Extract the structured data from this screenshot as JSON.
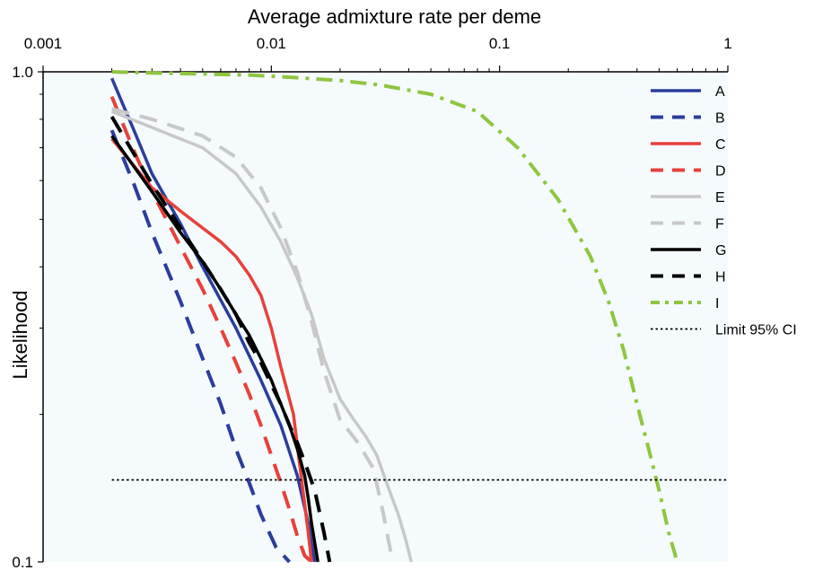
{
  "chart_data": {
    "type": "line",
    "xlabel": "Average admixture rate per deme",
    "ylabel": "Likelihood",
    "x_scale": "log",
    "y_scale": "log",
    "xlim": [
      0.001,
      1
    ],
    "ylim": [
      0.1,
      1.0
    ],
    "x_ticks": [
      {
        "value": 0.001,
        "label": "0.001"
      },
      {
        "value": 0.01,
        "label": "0.01"
      },
      {
        "value": 0.1,
        "label": "0.1"
      },
      {
        "value": 1,
        "label": "1"
      }
    ],
    "y_ticks": [
      {
        "value": 1.0,
        "label": "1.0"
      },
      {
        "value": 0.1,
        "label": "0.1"
      }
    ],
    "x_axis_position": "top",
    "grid": false,
    "legend_position": "top-right",
    "background_color": "#f5fbfd",
    "series": [
      {
        "name": "A",
        "color": "#2b3d9c",
        "dash": "solid",
        "x": [
          0.002,
          0.0025,
          0.003,
          0.004,
          0.005,
          0.007,
          0.009,
          0.011,
          0.013,
          0.0145,
          0.0155
        ],
        "y": [
          0.97,
          0.76,
          0.62,
          0.49,
          0.4,
          0.3,
          0.235,
          0.19,
          0.15,
          0.12,
          0.1
        ]
      },
      {
        "name": "B",
        "color": "#2b3d9c",
        "dash": "dash",
        "x": [
          0.002,
          0.0025,
          0.003,
          0.004,
          0.005,
          0.006,
          0.007,
          0.008,
          0.009,
          0.0105,
          0.012
        ],
        "y": [
          0.76,
          0.59,
          0.47,
          0.34,
          0.26,
          0.21,
          0.17,
          0.145,
          0.125,
          0.107,
          0.1
        ]
      },
      {
        "name": "C",
        "color": "#e8403a",
        "dash": "solid",
        "x": [
          0.002,
          0.003,
          0.004,
          0.005,
          0.006,
          0.007,
          0.008,
          0.009,
          0.01,
          0.011,
          0.0125,
          0.0135,
          0.0145,
          0.015
        ],
        "y": [
          0.73,
          0.58,
          0.52,
          0.48,
          0.45,
          0.42,
          0.385,
          0.35,
          0.3,
          0.25,
          0.2,
          0.15,
          0.115,
          0.1
        ]
      },
      {
        "name": "D",
        "color": "#e8403a",
        "dash": "dash",
        "x": [
          0.002,
          0.0025,
          0.003,
          0.004,
          0.005,
          0.006,
          0.007,
          0.008,
          0.009,
          0.01,
          0.011,
          0.012,
          0.013,
          0.014,
          0.015
        ],
        "y": [
          0.89,
          0.69,
          0.57,
          0.44,
          0.36,
          0.3,
          0.255,
          0.22,
          0.19,
          0.165,
          0.145,
          0.128,
          0.113,
          0.103,
          0.1
        ]
      },
      {
        "name": "E",
        "color": "#c8c8c8",
        "dash": "solid",
        "x": [
          0.002,
          0.003,
          0.005,
          0.007,
          0.009,
          0.011,
          0.013,
          0.015,
          0.017,
          0.02,
          0.023,
          0.026,
          0.029,
          0.032,
          0.036,
          0.039,
          0.041
        ],
        "y": [
          0.83,
          0.77,
          0.7,
          0.62,
          0.53,
          0.45,
          0.38,
          0.32,
          0.26,
          0.215,
          0.195,
          0.18,
          0.165,
          0.145,
          0.125,
          0.11,
          0.1
        ]
      },
      {
        "name": "F",
        "color": "#c8c8c8",
        "dash": "dash",
        "x": [
          0.002,
          0.003,
          0.005,
          0.007,
          0.009,
          0.011,
          0.013,
          0.015,
          0.017,
          0.02,
          0.024,
          0.028,
          0.031,
          0.034
        ],
        "y": [
          0.84,
          0.8,
          0.74,
          0.67,
          0.58,
          0.48,
          0.39,
          0.31,
          0.245,
          0.195,
          0.175,
          0.155,
          0.125,
          0.1
        ]
      },
      {
        "name": "G",
        "color": "#000000",
        "dash": "solid",
        "x": [
          0.002,
          0.003,
          0.004,
          0.005,
          0.006,
          0.007,
          0.008,
          0.009,
          0.01,
          0.011,
          0.012,
          0.013,
          0.014,
          0.0145,
          0.015,
          0.016
        ],
        "y": [
          0.74,
          0.57,
          0.47,
          0.41,
          0.36,
          0.32,
          0.29,
          0.26,
          0.235,
          0.21,
          0.19,
          0.17,
          0.15,
          0.135,
          0.12,
          0.1
        ]
      },
      {
        "name": "H",
        "color": "#000000",
        "dash": "dash",
        "x": [
          0.002,
          0.003,
          0.004,
          0.005,
          0.006,
          0.007,
          0.008,
          0.009,
          0.01,
          0.011,
          0.012,
          0.013,
          0.014,
          0.0155,
          0.017,
          0.018
        ],
        "y": [
          0.81,
          0.59,
          0.48,
          0.41,
          0.36,
          0.32,
          0.28,
          0.255,
          0.23,
          0.21,
          0.19,
          0.175,
          0.16,
          0.14,
          0.115,
          0.1
        ]
      },
      {
        "name": "I",
        "color": "#8ec63f",
        "dash": "dashdot",
        "x": [
          0.002,
          0.003,
          0.005,
          0.008,
          0.012,
          0.02,
          0.03,
          0.05,
          0.08,
          0.12,
          0.18,
          0.25,
          0.3,
          0.35,
          0.4,
          0.45,
          0.5,
          0.55,
          0.6
        ],
        "y": [
          1.0,
          0.995,
          0.99,
          0.985,
          0.975,
          0.96,
          0.94,
          0.9,
          0.83,
          0.7,
          0.55,
          0.42,
          0.34,
          0.27,
          0.21,
          0.17,
          0.14,
          0.115,
          0.1
        ]
      },
      {
        "name": "Limit 95% CI",
        "color": "#000000",
        "dash": "dot",
        "x": [
          0.002,
          1.0
        ],
        "y": [
          0.147,
          0.147
        ]
      }
    ]
  }
}
